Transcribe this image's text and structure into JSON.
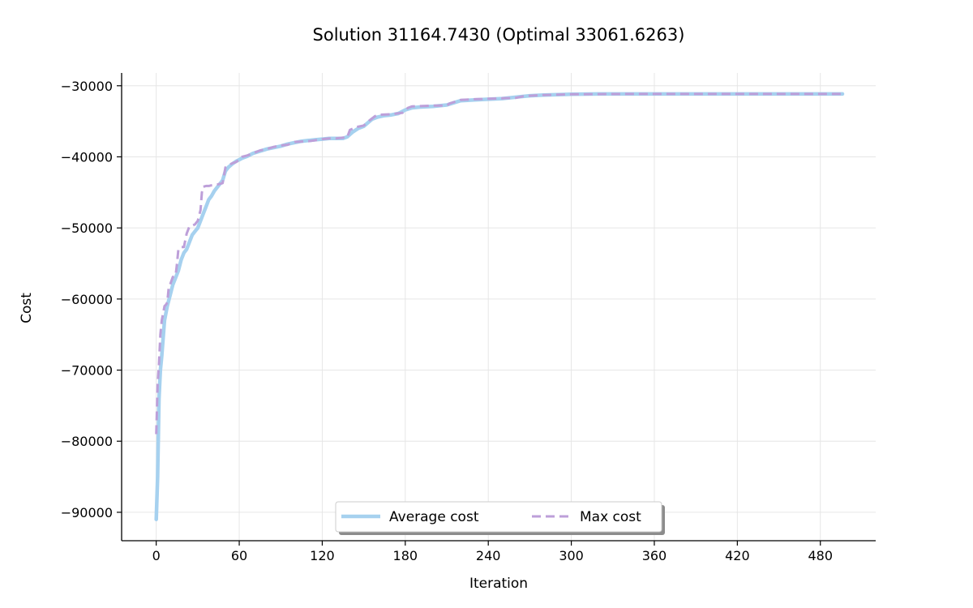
{
  "chart_data": {
    "type": "line",
    "title": "Solution 31164.7430 (Optimal 33061.6263)",
    "xlabel": "Iteration",
    "ylabel": "Cost",
    "xlim": [
      -25,
      520
    ],
    "ylim": [
      -94000,
      -28200
    ],
    "xticks": [
      0,
      60,
      120,
      180,
      240,
      300,
      360,
      420,
      480
    ],
    "yticks": [
      -90000,
      -80000,
      -70000,
      -60000,
      -50000,
      -40000,
      -30000
    ],
    "ytick_labels": [
      "−90000",
      "−80000",
      "−70000",
      "−60000",
      "−50000",
      "−40000",
      "−30000"
    ],
    "grid": true,
    "legend_position": "lower center",
    "colors": {
      "average": "#a6d1ef",
      "max": "#bd9fd9"
    },
    "series": [
      {
        "name": "Average cost",
        "style": "solid",
        "x": [
          0,
          1,
          2,
          3,
          4,
          5,
          6,
          8,
          10,
          12,
          14,
          16,
          18,
          20,
          22,
          24,
          26,
          28,
          30,
          32,
          34,
          36,
          38,
          40,
          42,
          44,
          46,
          48,
          50,
          52,
          55,
          58,
          62,
          66,
          70,
          75,
          80,
          85,
          90,
          95,
          100,
          105,
          110,
          115,
          120,
          125,
          130,
          135,
          138,
          142,
          146,
          150,
          153,
          156,
          160,
          165,
          170,
          175,
          180,
          185,
          190,
          200,
          210,
          215,
          220,
          230,
          240,
          250,
          260,
          270,
          280,
          300,
          320,
          360,
          400,
          440,
          480,
          496
        ],
        "values": [
          -91000,
          -85000,
          -74000,
          -70000,
          -68000,
          -65500,
          -63000,
          -61000,
          -59500,
          -58000,
          -57000,
          -56000,
          -54500,
          -53500,
          -53000,
          -52000,
          -51000,
          -50500,
          -50000,
          -49000,
          -48000,
          -47000,
          -46000,
          -45500,
          -44800,
          -44300,
          -43800,
          -43300,
          -42000,
          -41500,
          -41000,
          -40600,
          -40200,
          -39900,
          -39500,
          -39200,
          -38900,
          -38700,
          -38500,
          -38200,
          -38000,
          -37800,
          -37700,
          -37600,
          -37500,
          -37400,
          -37400,
          -37400,
          -37200,
          -36500,
          -36000,
          -35700,
          -35200,
          -34700,
          -34400,
          -34200,
          -34100,
          -33900,
          -33400,
          -33100,
          -33000,
          -32900,
          -32700,
          -32400,
          -32100,
          -32000,
          -31900,
          -31800,
          -31600,
          -31400,
          -31300,
          -31200,
          -31150,
          -31150,
          -31150,
          -31150,
          -31150,
          -31150
        ]
      },
      {
        "name": "Max cost",
        "style": "dashed",
        "x": [
          0,
          1,
          2,
          3,
          4,
          6,
          7,
          8,
          9,
          10,
          12,
          14,
          15,
          16,
          18,
          20,
          22,
          24,
          26,
          28,
          30,
          32,
          33,
          34,
          36,
          38,
          40,
          44,
          48,
          50,
          52,
          55,
          58,
          62,
          66,
          70,
          75,
          80,
          85,
          90,
          95,
          100,
          110,
          118,
          120,
          125,
          130,
          135,
          138,
          140,
          145,
          150,
          154,
          158,
          160,
          170,
          178,
          182,
          185,
          200,
          205,
          210,
          212,
          220,
          230,
          260,
          265,
          270,
          280,
          300,
          340,
          400,
          496
        ],
        "values": [
          -79000,
          -72000,
          -69000,
          -65000,
          -63000,
          -61000,
          -60800,
          -60500,
          -58500,
          -58000,
          -56900,
          -56700,
          -55000,
          -53000,
          -52700,
          -52700,
          -50800,
          -49800,
          -49700,
          -49500,
          -49000,
          -47500,
          -45000,
          -44200,
          -44100,
          -44100,
          -44000,
          -43900,
          -43700,
          -41500,
          -41200,
          -40900,
          -40700,
          -40000,
          -39800,
          -39500,
          -39100,
          -38900,
          -38600,
          -38400,
          -38300,
          -37900,
          -37800,
          -37600,
          -37500,
          -37400,
          -37400,
          -37300,
          -37300,
          -36200,
          -35800,
          -35600,
          -34900,
          -34300,
          -34100,
          -34000,
          -33800,
          -33100,
          -32900,
          -32800,
          -32800,
          -32800,
          -32500,
          -32000,
          -31900,
          -31700,
          -31500,
          -31400,
          -31300,
          -31200,
          -31150,
          -31150,
          -31150
        ]
      }
    ]
  }
}
